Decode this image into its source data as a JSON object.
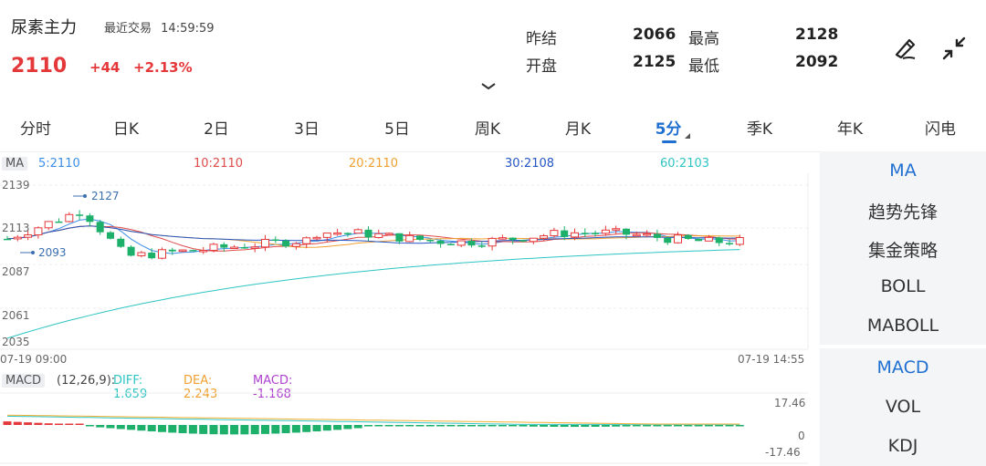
{
  "header": {
    "title": "尿素主力",
    "trade_label": "最近交易",
    "time": "14:59:59",
    "price": "2110",
    "change": "+44",
    "change_pct": "+2.13%"
  },
  "quote": {
    "prev_settle_label": "昨结",
    "prev_settle": "2066",
    "high_label": "最高",
    "high": "2128",
    "open_label": "开盘",
    "open": "2125",
    "low_label": "最低",
    "low": "2092"
  },
  "icons": {
    "draw": "pen-draw-icon",
    "shrink": "shrink-arrows-icon",
    "expand": "chevron-down-icon"
  },
  "tabs": [
    "分时",
    "日K",
    "2日",
    "3日",
    "5日",
    "周K",
    "月K",
    "5分",
    "季K",
    "年K",
    "闪电"
  ],
  "active_tab": "5分",
  "ma": {
    "badge": "MA",
    "ma5": "5:2110",
    "ma10": "10:2110",
    "ma20": "20:2110",
    "ma30": "30:2108",
    "ma60": "60:2103",
    "colors": {
      "ma5": "#3b8ee8",
      "ma10": "#e04b4b",
      "ma20": "#f0a030",
      "ma30": "#2455c4",
      "ma60": "#2ec4c4"
    }
  },
  "price_axis": [
    "2139",
    "2113",
    "2087",
    "2061",
    "2035"
  ],
  "annotations": {
    "high": "2127",
    "low": "2093"
  },
  "time_axis": {
    "start": "07-19 09:00",
    "end": "07-19 14:55"
  },
  "side_menu_top": [
    "MA",
    "趋势先锋",
    "集金策略",
    "BOLL",
    "MABOLL"
  ],
  "side_menu_bottom": [
    "MACD",
    "VOL",
    "KDJ"
  ],
  "macd": {
    "badge": "MACD",
    "params": "(12,26,9):",
    "diff": "DIFF: 1.659",
    "dea": "DEA: 2.243",
    "macd": "MACD: -1.168",
    "axis": [
      "17.46",
      "0",
      "-17.46"
    ]
  },
  "colors": {
    "up": "#e5383b",
    "down": "#1cb06b",
    "accent": "#1f6fd1"
  }
}
